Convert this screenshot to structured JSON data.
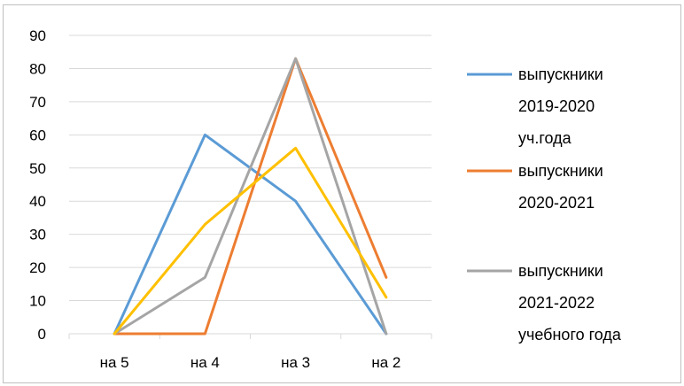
{
  "chart_data": {
    "type": "line",
    "title": "",
    "xlabel": "",
    "ylabel": "",
    "categories": [
      "на  5",
      "на 4",
      "на 3",
      "на 2"
    ],
    "ylim": [
      0,
      90
    ],
    "yticks": [
      0,
      10,
      20,
      30,
      40,
      50,
      60,
      70,
      80,
      90
    ],
    "grid": true,
    "legend_position": "right",
    "series": [
      {
        "name": "выпускники 2019-2020 уч.года",
        "legend_lines": [
          "выпускники",
          "2019-2020",
          "уч.года"
        ],
        "color": "#5b9bd5",
        "values": [
          0,
          60,
          40,
          0
        ]
      },
      {
        "name": "выпускники 2020-2021",
        "legend_lines": [
          "выпускники",
          "2020-2021"
        ],
        "color": "#ed7d31",
        "values": [
          0,
          0,
          83,
          17
        ]
      },
      {
        "name": "выпускники 2021-2022 учебного года",
        "legend_lines": [
          "выпускники",
          "2021-2022",
          "учебного года"
        ],
        "color": "#a5a5a5",
        "values": [
          0,
          17,
          83,
          0
        ]
      },
      {
        "name": "",
        "legend_lines": [],
        "color": "#ffc000",
        "values": [
          0,
          33,
          56,
          11
        ]
      }
    ]
  }
}
